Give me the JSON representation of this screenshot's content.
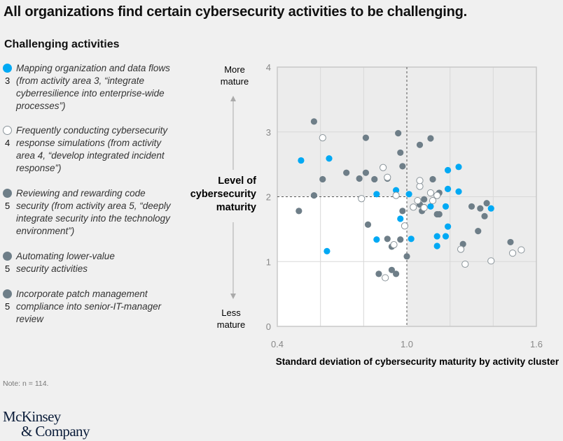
{
  "title": "All organizations find certain cybersecurity activities to be challenging.",
  "legend": {
    "title": "Challenging activities",
    "items": [
      {
        "number": "3",
        "label": "Mapping organization and data flows (from activity area 3, “integrate cyberresilience into enterprise-wide processes”)",
        "style": "blue"
      },
      {
        "number": "4",
        "label": "Frequently conducting cybersecurity response simulations (from activity area 4, “develop integrated incident response”)",
        "style": "white"
      },
      {
        "number": "5",
        "label": "Reviewing and rewarding code security (from activity area 5, “deeply integrate security into the technology environment”)",
        "style": "gray"
      },
      {
        "number": "5",
        "label": "Automating lower-value security activities",
        "style": "gray"
      },
      {
        "number": "5",
        "label": "Incorporate patch management compliance into senior-IT-manager review",
        "style": "gray"
      }
    ]
  },
  "colors": {
    "blue": "#00a9f4",
    "gray": "#6e7e88",
    "white": "#ffffff",
    "white_stroke": "#8a949a",
    "plot_bg": "#ececec",
    "quadrant_bg": "#ffffff"
  },
  "note": "Note: n = 114.",
  "logo": {
    "line1": "McKinsey",
    "line2": "& Company"
  },
  "chart_data": {
    "type": "scatter",
    "xlabel": "Standard deviation of cybersecurity maturity by activity cluster",
    "ylabel": "Level of cybersecurity maturity",
    "y_top_annotation": "More mature",
    "y_bottom_annotation": "Less mature",
    "xlim": [
      0.4,
      1.6
    ],
    "ylim": [
      0,
      4
    ],
    "xticks": [
      "0.4",
      "1.0",
      "1.6"
    ],
    "yticks": [
      "0",
      "1",
      "2",
      "3",
      "4"
    ],
    "grid": true,
    "reference_lines": {
      "x": 1.0,
      "y": 2
    },
    "series": [
      {
        "style": "blue",
        "points": [
          [
            0.51,
            2.56
          ],
          [
            0.64,
            2.59
          ],
          [
            0.63,
            1.16
          ],
          [
            0.86,
            2.04
          ],
          [
            0.95,
            2.1
          ],
          [
            1.01,
            2.04
          ],
          [
            0.97,
            1.66
          ],
          [
            0.86,
            1.34
          ],
          [
            1.02,
            1.35
          ],
          [
            1.11,
            1.85
          ],
          [
            1.18,
            1.85
          ],
          [
            1.19,
            2.41
          ],
          [
            1.24,
            2.46
          ],
          [
            1.19,
            2.12
          ],
          [
            1.24,
            2.08
          ],
          [
            1.19,
            1.54
          ],
          [
            1.14,
            1.24
          ],
          [
            1.14,
            1.39
          ],
          [
            1.18,
            1.39
          ],
          [
            1.39,
            1.82
          ]
        ]
      },
      {
        "style": "gray",
        "points": [
          [
            0.57,
            3.16
          ],
          [
            0.81,
            2.91
          ],
          [
            0.96,
            2.98
          ],
          [
            0.97,
            2.68
          ],
          [
            0.98,
            2.47
          ],
          [
            0.61,
            2.27
          ],
          [
            0.72,
            2.37
          ],
          [
            0.78,
            2.28
          ],
          [
            0.81,
            2.37
          ],
          [
            0.85,
            2.27
          ],
          [
            0.91,
            2.28
          ],
          [
            0.57,
            2.02
          ],
          [
            0.5,
            1.78
          ],
          [
            0.82,
            1.57
          ],
          [
            0.91,
            1.35
          ],
          [
            0.93,
            1.23
          ],
          [
            0.97,
            1.34
          ],
          [
            0.87,
            0.81
          ],
          [
            0.93,
            0.87
          ],
          [
            0.95,
            0.81
          ],
          [
            1.0,
            1.08
          ],
          [
            0.98,
            1.78
          ],
          [
            1.07,
            1.78
          ],
          [
            1.06,
            2.8
          ],
          [
            1.11,
            2.9
          ],
          [
            1.08,
            1.96
          ],
          [
            1.08,
            1.84
          ],
          [
            1.12,
            2.27
          ],
          [
            1.06,
            1.88
          ],
          [
            1.15,
            2.06
          ],
          [
            1.14,
            1.73
          ],
          [
            1.15,
            1.73
          ],
          [
            1.26,
            1.27
          ],
          [
            1.3,
            1.85
          ],
          [
            1.34,
            1.82
          ],
          [
            1.37,
            1.9
          ],
          [
            1.36,
            1.7
          ],
          [
            1.33,
            1.47
          ],
          [
            1.48,
            1.3
          ]
        ]
      },
      {
        "style": "white",
        "points": [
          [
            0.61,
            2.91
          ],
          [
            0.89,
            2.45
          ],
          [
            0.91,
            2.3
          ],
          [
            0.79,
            1.97
          ],
          [
            0.95,
            2.02
          ],
          [
            0.99,
            1.55
          ],
          [
            0.94,
            1.26
          ],
          [
            0.9,
            0.75
          ],
          [
            1.06,
            2.16
          ],
          [
            1.06,
            2.25
          ],
          [
            1.11,
            2.06
          ],
          [
            1.05,
            1.94
          ],
          [
            1.03,
            1.84
          ],
          [
            1.08,
            1.83
          ],
          [
            1.12,
            1.94
          ],
          [
            1.14,
            2.02
          ],
          [
            1.25,
            1.19
          ],
          [
            1.27,
            0.96
          ],
          [
            1.39,
            1.01
          ],
          [
            1.49,
            1.13
          ],
          [
            1.53,
            1.18
          ]
        ]
      }
    ]
  }
}
